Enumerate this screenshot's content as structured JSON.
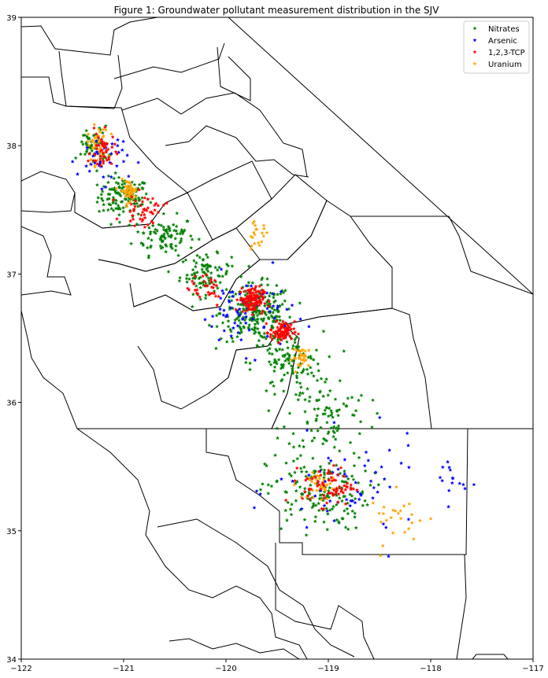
{
  "chart_data": {
    "type": "scatter",
    "title": "Figure 1: Groundwater pollutant measurement distribution in the SJV",
    "xlim": [
      -122,
      -117
    ],
    "ylim": [
      34,
      39
    ],
    "xticks": [
      -122,
      -121,
      -120,
      -119,
      -118,
      -117
    ],
    "yticks": [
      34,
      35,
      36,
      37,
      38,
      39
    ],
    "xtick_labels": [
      "−122",
      "−121",
      "−120",
      "−119",
      "−118",
      "−117"
    ],
    "ytick_labels": [
      "34",
      "35",
      "36",
      "37",
      "38",
      "39"
    ],
    "legend_position": "upper right",
    "series": [
      {
        "name": "Nitrates",
        "color": "#008000",
        "marker": "star"
      },
      {
        "name": "Arsenic",
        "color": "#0000ff",
        "marker": "star"
      },
      {
        "name": "1,2,3-TCP",
        "color": "#ff0000",
        "marker": "star"
      },
      {
        "name": "Uranium",
        "color": "#ffa500",
        "marker": "star"
      }
    ],
    "clusters": [
      {
        "series": "Nitrates",
        "center": [
          -121.0,
          37.6
        ],
        "spread": [
          0.25,
          0.15
        ],
        "count": 120
      },
      {
        "series": "Nitrates",
        "center": [
          -120.6,
          37.3
        ],
        "spread": [
          0.3,
          0.15
        ],
        "count": 90
      },
      {
        "series": "Nitrates",
        "center": [
          -120.2,
          37.0
        ],
        "spread": [
          0.25,
          0.15
        ],
        "count": 90
      },
      {
        "series": "Nitrates",
        "center": [
          -119.7,
          36.7
        ],
        "spread": [
          0.35,
          0.22
        ],
        "count": 220
      },
      {
        "series": "Nitrates",
        "center": [
          -119.4,
          36.3
        ],
        "spread": [
          0.35,
          0.25
        ],
        "count": 110
      },
      {
        "series": "Nitrates",
        "center": [
          -119.0,
          35.9
        ],
        "spread": [
          0.4,
          0.3
        ],
        "count": 90
      },
      {
        "series": "Nitrates",
        "center": [
          -119.1,
          35.3
        ],
        "spread": [
          0.5,
          0.3
        ],
        "count": 160
      },
      {
        "series": "Nitrates",
        "center": [
          -121.3,
          38.0
        ],
        "spread": [
          0.15,
          0.15
        ],
        "count": 50
      },
      {
        "series": "Arsenic",
        "center": [
          -121.2,
          37.9
        ],
        "spread": [
          0.25,
          0.2
        ],
        "count": 40
      },
      {
        "series": "Arsenic",
        "center": [
          -119.8,
          36.7
        ],
        "spread": [
          0.45,
          0.3
        ],
        "count": 70
      },
      {
        "series": "Arsenic",
        "center": [
          -118.8,
          35.3
        ],
        "spread": [
          0.7,
          0.4
        ],
        "count": 60
      },
      {
        "series": "Arsenic",
        "center": [
          -117.8,
          35.4
        ],
        "spread": [
          0.15,
          0.2
        ],
        "count": 15
      },
      {
        "series": "1,2,3-TCP",
        "center": [
          -121.2,
          37.95
        ],
        "spread": [
          0.12,
          0.15
        ],
        "count": 45
      },
      {
        "series": "1,2,3-TCP",
        "center": [
          -120.8,
          37.5
        ],
        "spread": [
          0.2,
          0.12
        ],
        "count": 45
      },
      {
        "series": "1,2,3-TCP",
        "center": [
          -119.75,
          36.8
        ],
        "spread": [
          0.12,
          0.1
        ],
        "count": 120
      },
      {
        "series": "1,2,3-TCP",
        "center": [
          -119.45,
          36.55
        ],
        "spread": [
          0.12,
          0.08
        ],
        "count": 80
      },
      {
        "series": "1,2,3-TCP",
        "center": [
          -119.0,
          35.35
        ],
        "spread": [
          0.25,
          0.15
        ],
        "count": 70
      },
      {
        "series": "1,2,3-TCP",
        "center": [
          -120.2,
          36.9
        ],
        "spread": [
          0.2,
          0.15
        ],
        "count": 30
      },
      {
        "series": "Uranium",
        "center": [
          -121.25,
          38.0
        ],
        "spread": [
          0.1,
          0.15
        ],
        "count": 50
      },
      {
        "series": "Uranium",
        "center": [
          -120.95,
          37.65
        ],
        "spread": [
          0.08,
          0.08
        ],
        "count": 50
      },
      {
        "series": "Uranium",
        "center": [
          -119.25,
          36.35
        ],
        "spread": [
          0.1,
          0.08
        ],
        "count": 30
      },
      {
        "series": "Uranium",
        "center": [
          -119.05,
          35.35
        ],
        "spread": [
          0.15,
          0.1
        ],
        "count": 40
      },
      {
        "series": "Uranium",
        "center": [
          -119.7,
          37.3
        ],
        "spread": [
          0.12,
          0.1
        ],
        "count": 20
      },
      {
        "series": "Uranium",
        "center": [
          -118.3,
          35.1
        ],
        "spread": [
          0.3,
          0.2
        ],
        "count": 25
      }
    ]
  }
}
